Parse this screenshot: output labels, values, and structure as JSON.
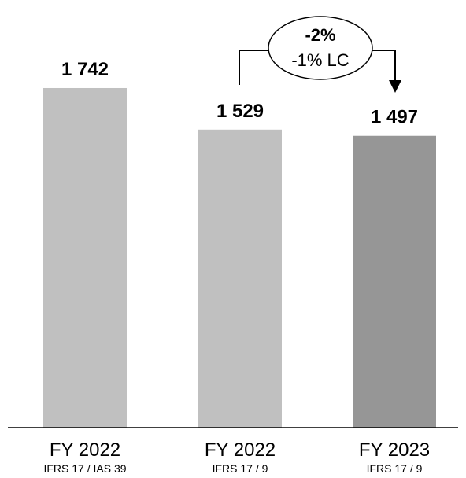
{
  "chart_data": {
    "type": "bar",
    "categories": [
      {
        "main": "FY 2022",
        "sub": "IFRS 17 / IAS 39"
      },
      {
        "main": "FY 2022",
        "sub": "IFRS 17 / 9"
      },
      {
        "main": "FY 2023",
        "sub": "IFRS 17 / 9"
      }
    ],
    "values": [
      1742,
      1529,
      1497
    ],
    "value_labels": [
      "1 742",
      "1 529",
      "1 497"
    ],
    "bar_colors": [
      "#c0c0c0",
      "#c0c0c0",
      "#969696"
    ],
    "ylim": [
      0,
      1750
    ],
    "grid": false,
    "legend": "none",
    "annotation": {
      "from_index": 1,
      "to_index": 2,
      "change": "-2%",
      "change_lc": "-1% LC"
    }
  }
}
